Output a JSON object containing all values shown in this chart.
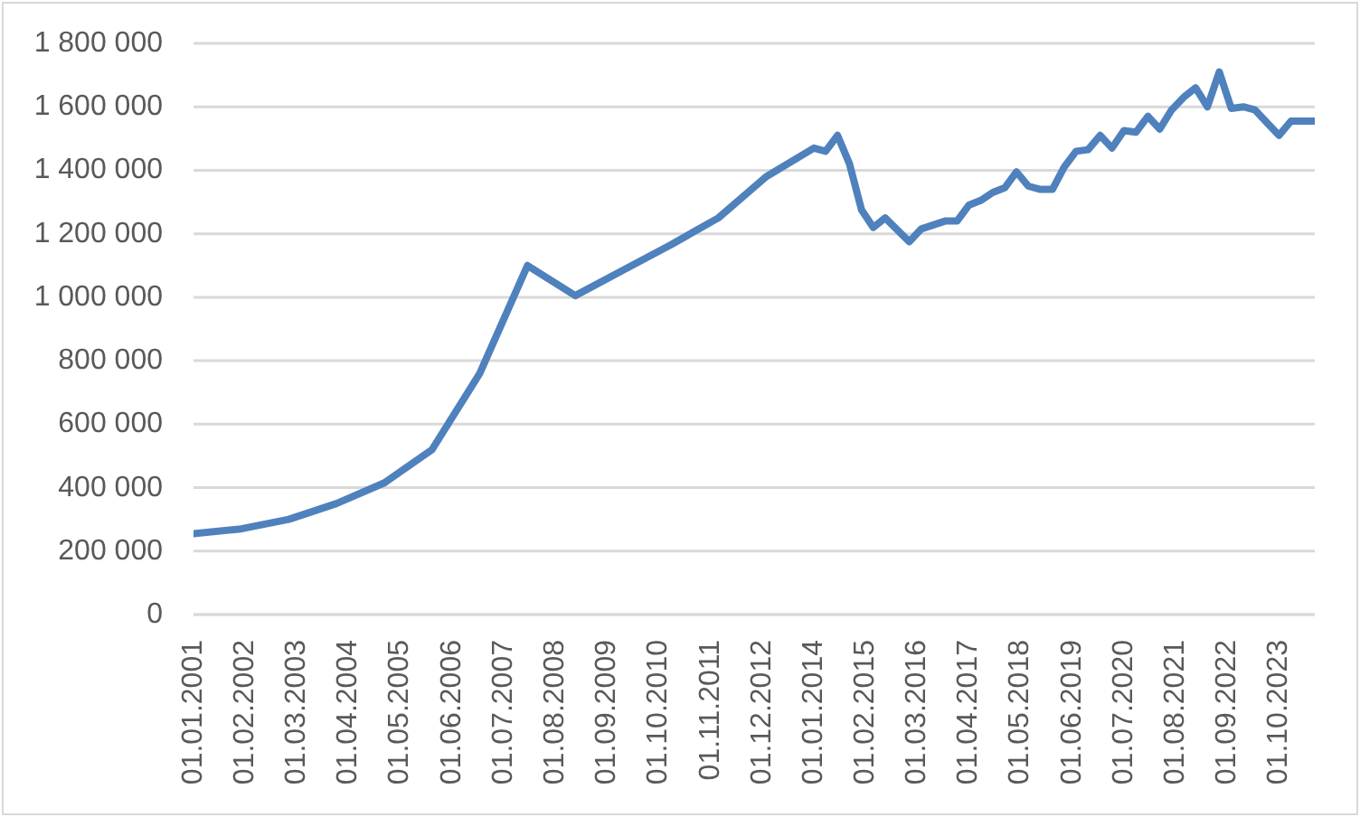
{
  "chart_data": {
    "type": "line",
    "color": "#4f81bd",
    "x": [
      "2001-01-01",
      "2002-01-01",
      "2003-01-01",
      "2004-01-01",
      "2005-01-01",
      "2006-01-01",
      "2007-01-01",
      "2008-01-01",
      "2009-01-01",
      "2010-01-01",
      "2011-01-01",
      "2012-01-01",
      "2013-01-01",
      "2014-01-01",
      "2014-04-01",
      "2014-07-01",
      "2014-10-01",
      "2015-01-01",
      "2015-04-01",
      "2015-07-01",
      "2016-01-01",
      "2016-04-01",
      "2016-10-01",
      "2017-01-01",
      "2017-04-01",
      "2017-07-01",
      "2017-10-01",
      "2018-01-01",
      "2018-04-01",
      "2018-07-01",
      "2018-10-01",
      "2019-01-01",
      "2019-04-01",
      "2019-07-01",
      "2019-10-01",
      "2020-01-01",
      "2020-04-01",
      "2020-07-01",
      "2020-10-01",
      "2021-01-01",
      "2021-04-01",
      "2021-07-01",
      "2021-10-01",
      "2022-01-01",
      "2022-04-01",
      "2022-07-01",
      "2022-10-01",
      "2023-01-01",
      "2023-04-01",
      "2023-07-01",
      "2023-10-01",
      "2024-01-01",
      "2024-04-01",
      "2024-07-01"
    ],
    "values": [
      255000,
      270000,
      300000,
      350000,
      415000,
      520000,
      760000,
      1100000,
      1005000,
      1085000,
      1165000,
      1250000,
      1380000,
      1470000,
      1460000,
      1510000,
      1420000,
      1275000,
      1220000,
      1250000,
      1175000,
      1215000,
      1240000,
      1240000,
      1290000,
      1305000,
      1330000,
      1345000,
      1395000,
      1350000,
      1340000,
      1340000,
      1410000,
      1460000,
      1465000,
      1510000,
      1470000,
      1525000,
      1520000,
      1570000,
      1530000,
      1590000,
      1630000,
      1660000,
      1600000,
      1710000,
      1595000,
      1600000,
      1590000,
      1550000,
      1510000,
      1555000,
      1555000,
      1555000
    ],
    "xlim": [
      "2001-01-01",
      "2024-07-01"
    ],
    "xticks": [
      {
        "value": "2001-01-01",
        "label": "01.01.2001"
      },
      {
        "value": "2002-02-01",
        "label": "01.02.2002"
      },
      {
        "value": "2003-03-01",
        "label": "01.03.2003"
      },
      {
        "value": "2004-04-01",
        "label": "01.04.2004"
      },
      {
        "value": "2005-05-01",
        "label": "01.05.2005"
      },
      {
        "value": "2006-06-01",
        "label": "01.06.2006"
      },
      {
        "value": "2007-07-01",
        "label": "01.07.2007"
      },
      {
        "value": "2008-08-01",
        "label": "01.08.2008"
      },
      {
        "value": "2009-09-01",
        "label": "01.09.2009"
      },
      {
        "value": "2010-10-01",
        "label": "01.10.2010"
      },
      {
        "value": "2011-11-01",
        "label": "01.11.2011"
      },
      {
        "value": "2012-12-01",
        "label": "01.12.2012"
      },
      {
        "value": "2014-01-01",
        "label": "01.01.2014"
      },
      {
        "value": "2015-02-01",
        "label": "01.02.2015"
      },
      {
        "value": "2016-03-01",
        "label": "01.03.2016"
      },
      {
        "value": "2017-04-01",
        "label": "01.04.2017"
      },
      {
        "value": "2018-05-01",
        "label": "01.05.2018"
      },
      {
        "value": "2019-06-01",
        "label": "01.06.2019"
      },
      {
        "value": "2020-07-01",
        "label": "01.07.2020"
      },
      {
        "value": "2021-08-01",
        "label": "01.08.2021"
      },
      {
        "value": "2022-09-01",
        "label": "01.09.2022"
      },
      {
        "value": "2023-10-01",
        "label": "01.10.2023"
      }
    ],
    "ylim": [
      0,
      1800000
    ],
    "yticks": [
      0,
      {
        "value": 200000,
        "label": "200 000"
      },
      {
        "value": 400000,
        "label": "400 000"
      },
      {
        "value": 600000,
        "label": "600 000"
      },
      {
        "value": 800000,
        "label": "800 000"
      },
      {
        "value": 1000000,
        "label": "1 000 000"
      },
      {
        "value": 1200000,
        "label": "1 200 000"
      },
      {
        "value": 1400000,
        "label": "1 400 000"
      },
      {
        "value": 1600000,
        "label": "1 600 000"
      },
      {
        "value": 1800000,
        "label": "1 800 000"
      }
    ],
    "grid": "y"
  }
}
